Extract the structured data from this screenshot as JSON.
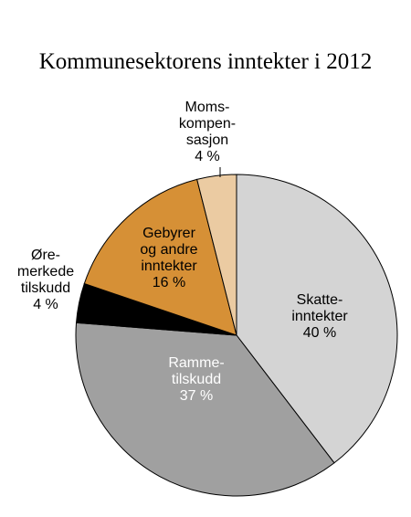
{
  "chart_data": {
    "type": "pie",
    "title": "Kommunesektorens inntekter i 2012",
    "unit": "%",
    "slices": [
      {
        "lines": [
          "Skatte-",
          "inntekter",
          "40 %"
        ],
        "value": 40,
        "color": "#d4d4d4",
        "text_color": "#000000"
      },
      {
        "lines": [
          "Ramme-",
          "tilskudd",
          "37 %"
        ],
        "value": 37,
        "color": "#a0a0a0",
        "text_color": "#ffffff"
      },
      {
        "lines": [
          "Øre-",
          "merkede",
          "tilskudd",
          "4 %"
        ],
        "value": 4,
        "color": "#000000",
        "text_color": "#000000"
      },
      {
        "lines": [
          "Gebyrer",
          "og andre",
          "inntekter",
          "16 %"
        ],
        "value": 16,
        "color": "#d69036",
        "text_color": "#000000"
      },
      {
        "lines": [
          "Moms-",
          "kompen-",
          "sasjon",
          "4 %"
        ],
        "value": 4,
        "color": "#ebcba2",
        "text_color": "#000000"
      }
    ]
  }
}
